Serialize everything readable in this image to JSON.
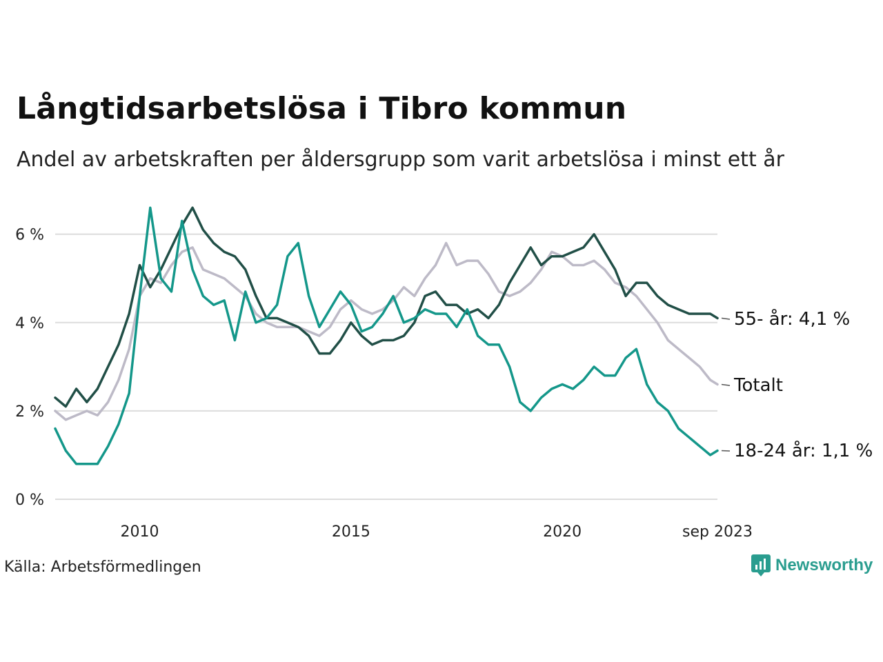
{
  "title": "Långtidsarbetslösa i Tibro kommun",
  "subtitle": "Andel av arbetskraften per åldersgrupp som varit arbetslösa i minst ett år",
  "source": "Källa: Arbetsförmedlingen",
  "brand": "Newsworthy",
  "colors": {
    "age55": "#214f47",
    "total": "#bdbac7",
    "age1824": "#14978a",
    "grid": "#dcdcdc",
    "brand": "#2a9d8f"
  },
  "chart_data": {
    "type": "line",
    "title": "Långtidsarbetslösa i Tibro kommun",
    "xlabel": "",
    "ylabel": "",
    "xlim": [
      2008.0,
      2023.67
    ],
    "ylim": [
      0,
      6.9
    ],
    "yticks": [
      0,
      2,
      4,
      6
    ],
    "ytick_labels": [
      "0 %",
      "2 %",
      "4 %",
      "6 %"
    ],
    "xticks": [
      2010,
      2015,
      2020,
      2023.67
    ],
    "xtick_labels": [
      "2010",
      "2015",
      "2020",
      "sep 2023"
    ],
    "grid": true,
    "series": [
      {
        "name": "Totalt",
        "label": "Totalt",
        "color": "#bdbac7",
        "x": [
          2008.0,
          2008.25,
          2008.5,
          2008.75,
          2009.0,
          2009.25,
          2009.5,
          2009.75,
          2010.0,
          2010.25,
          2010.5,
          2010.75,
          2011.0,
          2011.25,
          2011.5,
          2011.75,
          2012.0,
          2012.25,
          2012.5,
          2012.75,
          2013.0,
          2013.25,
          2013.5,
          2013.75,
          2014.0,
          2014.25,
          2014.5,
          2014.75,
          2015.0,
          2015.25,
          2015.5,
          2015.75,
          2016.0,
          2016.25,
          2016.5,
          2016.75,
          2017.0,
          2017.25,
          2017.5,
          2017.75,
          2018.0,
          2018.25,
          2018.5,
          2018.75,
          2019.0,
          2019.25,
          2019.5,
          2019.75,
          2020.0,
          2020.25,
          2020.5,
          2020.75,
          2021.0,
          2021.25,
          2021.5,
          2021.75,
          2022.0,
          2022.25,
          2022.5,
          2022.75,
          2023.0,
          2023.25,
          2023.5,
          2023.67
        ],
        "y": [
          2.0,
          1.8,
          1.9,
          2.0,
          1.9,
          2.2,
          2.7,
          3.4,
          4.6,
          5.0,
          4.9,
          5.3,
          5.6,
          5.7,
          5.2,
          5.1,
          5.0,
          4.8,
          4.6,
          4.2,
          4.0,
          3.9,
          3.9,
          3.9,
          3.8,
          3.7,
          3.9,
          4.3,
          4.5,
          4.3,
          4.2,
          4.3,
          4.5,
          4.8,
          4.6,
          5.0,
          5.3,
          5.8,
          5.3,
          5.4,
          5.4,
          5.1,
          4.7,
          4.6,
          4.7,
          4.9,
          5.2,
          5.6,
          5.5,
          5.3,
          5.3,
          5.4,
          5.2,
          4.9,
          4.8,
          4.6,
          4.3,
          4.0,
          3.6,
          3.4,
          3.2,
          3.0,
          2.7,
          2.6
        ]
      },
      {
        "name": "55- år",
        "label": "55- år: 4,1 %",
        "color": "#214f47",
        "x": [
          2008.0,
          2008.25,
          2008.5,
          2008.75,
          2009.0,
          2009.25,
          2009.5,
          2009.75,
          2010.0,
          2010.25,
          2010.5,
          2010.75,
          2011.0,
          2011.25,
          2011.5,
          2011.75,
          2012.0,
          2012.25,
          2012.5,
          2012.75,
          2013.0,
          2013.25,
          2013.5,
          2013.75,
          2014.0,
          2014.25,
          2014.5,
          2014.75,
          2015.0,
          2015.25,
          2015.5,
          2015.75,
          2016.0,
          2016.25,
          2016.5,
          2016.75,
          2017.0,
          2017.25,
          2017.5,
          2017.75,
          2018.0,
          2018.25,
          2018.5,
          2018.75,
          2019.0,
          2019.25,
          2019.5,
          2019.75,
          2020.0,
          2020.25,
          2020.5,
          2020.75,
          2021.0,
          2021.25,
          2021.5,
          2021.75,
          2022.0,
          2022.25,
          2022.5,
          2022.75,
          2023.0,
          2023.25,
          2023.5,
          2023.67
        ],
        "y": [
          2.3,
          2.1,
          2.5,
          2.2,
          2.5,
          3.0,
          3.5,
          4.2,
          5.3,
          4.8,
          5.2,
          5.7,
          6.2,
          6.6,
          6.1,
          5.8,
          5.6,
          5.5,
          5.2,
          4.6,
          4.1,
          4.1,
          4.0,
          3.9,
          3.7,
          3.3,
          3.3,
          3.6,
          4.0,
          3.7,
          3.5,
          3.6,
          3.6,
          3.7,
          4.0,
          4.6,
          4.7,
          4.4,
          4.4,
          4.2,
          4.3,
          4.1,
          4.4,
          4.9,
          5.3,
          5.7,
          5.3,
          5.5,
          5.5,
          5.6,
          5.7,
          6.0,
          5.6,
          5.2,
          4.6,
          4.9,
          4.9,
          4.6,
          4.4,
          4.3,
          4.2,
          4.2,
          4.2,
          4.1
        ]
      },
      {
        "name": "18-24 år",
        "label": "18-24 år: 1,1 %",
        "color": "#14978a",
        "x": [
          2008.0,
          2008.25,
          2008.5,
          2008.75,
          2009.0,
          2009.25,
          2009.5,
          2009.75,
          2010.0,
          2010.25,
          2010.5,
          2010.75,
          2011.0,
          2011.25,
          2011.5,
          2011.75,
          2012.0,
          2012.25,
          2012.5,
          2012.75,
          2013.0,
          2013.25,
          2013.5,
          2013.75,
          2014.0,
          2014.25,
          2014.5,
          2014.75,
          2015.0,
          2015.25,
          2015.5,
          2015.75,
          2016.0,
          2016.25,
          2016.5,
          2016.75,
          2017.0,
          2017.25,
          2017.5,
          2017.75,
          2018.0,
          2018.25,
          2018.5,
          2018.75,
          2019.0,
          2019.25,
          2019.5,
          2019.75,
          2020.0,
          2020.25,
          2020.5,
          2020.75,
          2021.0,
          2021.25,
          2021.5,
          2021.75,
          2022.0,
          2022.25,
          2022.5,
          2022.75,
          2023.0,
          2023.25,
          2023.5,
          2023.67
        ],
        "y": [
          1.6,
          1.1,
          0.8,
          0.8,
          0.8,
          1.2,
          1.7,
          2.4,
          4.6,
          6.6,
          5.0,
          4.7,
          6.3,
          5.2,
          4.6,
          4.4,
          4.5,
          3.6,
          4.7,
          4.0,
          4.1,
          4.4,
          5.5,
          5.8,
          4.6,
          3.9,
          4.3,
          4.7,
          4.4,
          3.8,
          3.9,
          4.2,
          4.6,
          4.0,
          4.1,
          4.3,
          4.2,
          4.2,
          3.9,
          4.3,
          3.7,
          3.5,
          3.5,
          3.0,
          2.2,
          2.0,
          2.3,
          2.5,
          2.6,
          2.5,
          2.7,
          3.0,
          2.8,
          2.8,
          3.2,
          3.4,
          2.6,
          2.2,
          2.0,
          1.6,
          1.4,
          1.2,
          1.0,
          1.1
        ]
      }
    ]
  }
}
